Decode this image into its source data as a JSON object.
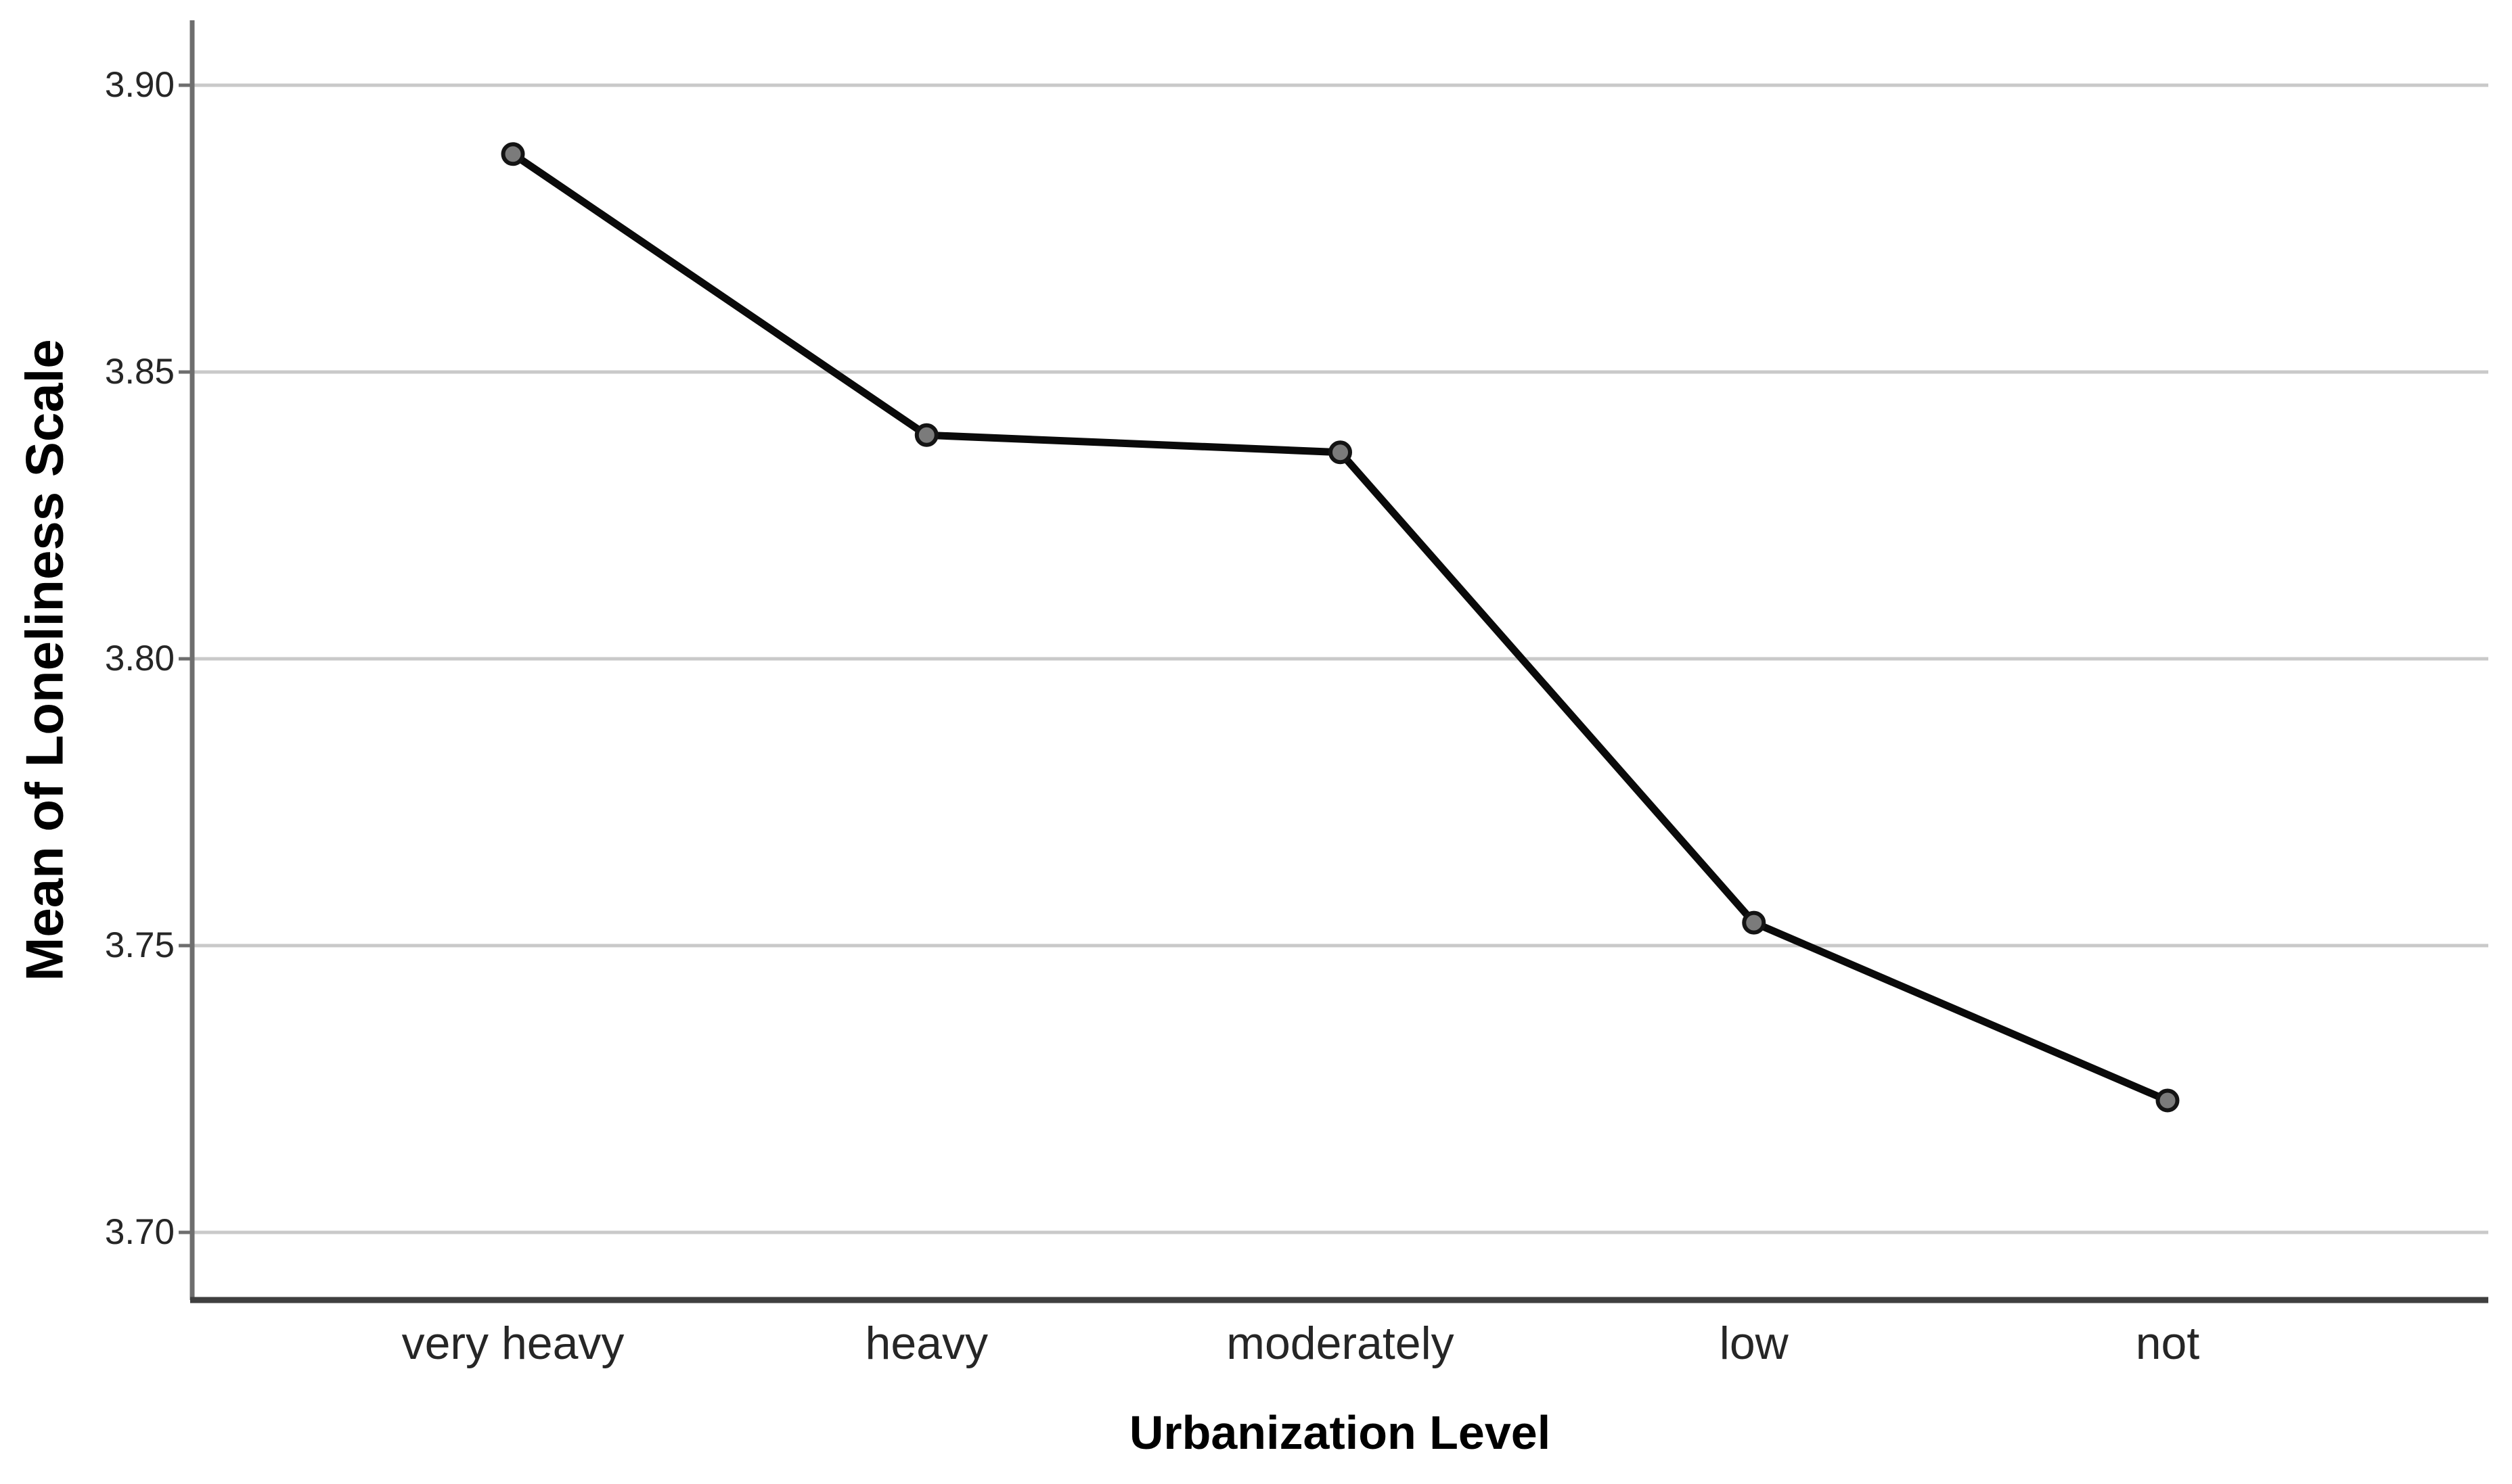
{
  "chart_data": {
    "type": "line",
    "title": "",
    "xlabel": "Urbanization Level",
    "ylabel": "Mean of Loneliness Scale",
    "categories": [
      "very heavy",
      "heavy",
      "moderately",
      "low",
      "not"
    ],
    "series": [
      {
        "name": "Mean of Loneliness Scale",
        "values": [
          3.888,
          3.839,
          3.836,
          3.754,
          3.723
        ]
      }
    ],
    "yticks": [
      3.9,
      3.85,
      3.8,
      3.75,
      3.7
    ],
    "ytick_labels": [
      "3.90",
      "3.85",
      "3.80",
      "3.75",
      "3.70"
    ],
    "ylim": [
      3.688,
      3.911
    ],
    "grid": "horizontal-only",
    "legend": "none",
    "marker": "circle",
    "colors": {
      "line": "#0a0a0a",
      "marker_fill": "#7b7b7b",
      "marker_stroke": "#141414",
      "gridline": "#c9c9c9",
      "y_axis_line": "#6e6e6e",
      "x_axis_line": "#3f3f3f",
      "tick_text": "#262626",
      "title_text": "#000000"
    }
  }
}
